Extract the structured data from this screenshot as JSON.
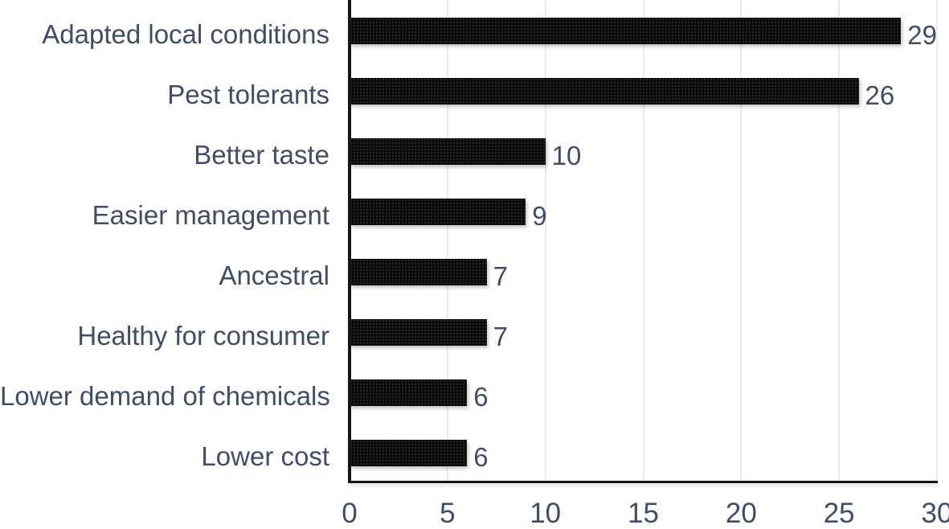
{
  "chart_data": {
    "type": "bar",
    "orientation": "horizontal",
    "title": "",
    "xlabel": "",
    "ylabel": "",
    "categories": [
      "Adapted local conditions",
      "Pest tolerants",
      "Better taste",
      "Easier management",
      "Ancestral",
      "Healthy for consumer",
      "Lower demand of chemicals",
      "Lower cost"
    ],
    "values": [
      29,
      26,
      10,
      9,
      7,
      7,
      6,
      6
    ],
    "x_ticks": [
      0,
      5,
      10,
      15,
      20,
      25,
      30
    ],
    "xlim": [
      0,
      30
    ],
    "grid": "vertical-gridlines-at-ticks",
    "legend_position": "none",
    "colors": {
      "bar": "#0a0a0a",
      "text": "#404d66",
      "gridline": "#e6eaf2",
      "axis": "#161616",
      "background": "#ffffff"
    }
  }
}
